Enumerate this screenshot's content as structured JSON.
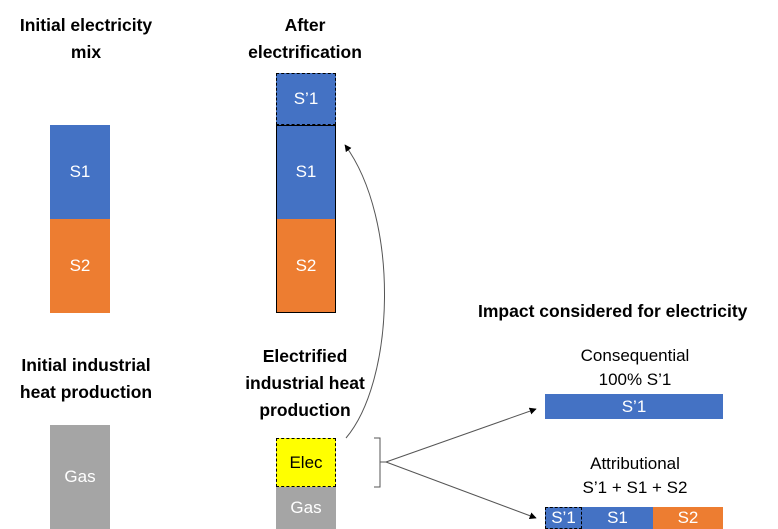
{
  "columns": {
    "initial_mix_title": [
      "Initial electricity",
      "mix"
    ],
    "after_title": [
      "After",
      "electrification"
    ],
    "initial_heat_title": [
      "Initial industrial",
      "heat production"
    ],
    "electrified_heat_title": [
      "Electrified",
      "industrial heat",
      "production"
    ]
  },
  "blocks": {
    "s1": "S1",
    "s2": "S2",
    "s1_prime": "S’1",
    "gas": "Gas",
    "elec": "Elec"
  },
  "impact": {
    "title": "Impact considered for electricity",
    "consequential": [
      "Consequential",
      "100% S’1"
    ],
    "consequential_bar": "S’1",
    "attributional": [
      "Attributional",
      "S’1 + S1 + S2"
    ],
    "attributional_bar": [
      "S’1",
      "S1",
      "S2"
    ]
  },
  "colors": {
    "blue": "#4472C4",
    "orange": "#ED7D31",
    "grey": "#A5A5A5",
    "yellow": "#FFFF00"
  }
}
